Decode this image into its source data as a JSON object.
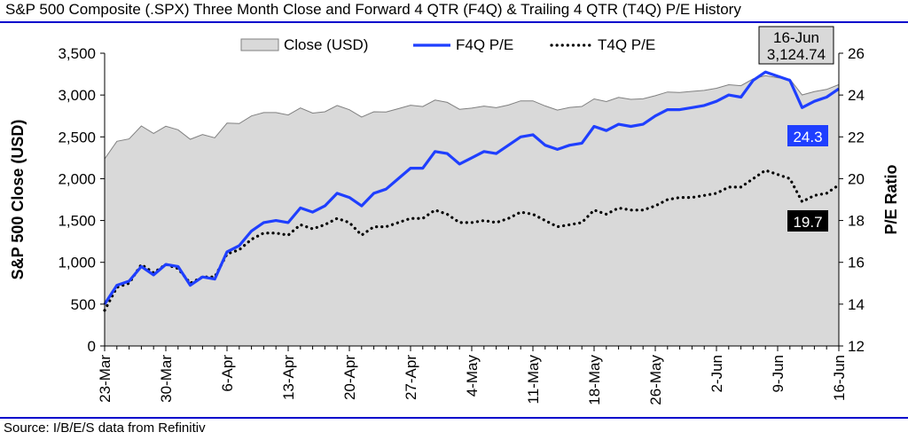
{
  "header": {
    "title": "S&P 500 Composite (.SPX) Three Month Close and Forward 4 QTR (F4Q) & Trailing 4 QTR (T4Q) P/E History"
  },
  "footer": {
    "source": "Source: I/B/E/S data from Refinitiv"
  },
  "colors": {
    "area_fill": "#d9d9d9",
    "area_stroke": "#808080",
    "f4q_line": "#1f3fff",
    "t4q_line": "#000000",
    "rule": "#0000cc",
    "f4q_label_bg": "#1f3fff",
    "t4q_label_bg": "#000000"
  },
  "chart_data": {
    "type": "area+line",
    "title": "S&P 500 Composite (.SPX) Three Month Close and Forward 4 QTR (F4Q) & Trailing 4 QTR (T4Q) P/E History",
    "ylabel": "S&P 500 Close (USD)",
    "y2label": "P/E Ratio",
    "ylim": [
      0,
      3500
    ],
    "y2lim": [
      12,
      26
    ],
    "yticks": [
      "0",
      "500",
      "1,000",
      "1,500",
      "2,000",
      "2,500",
      "3,000",
      "3,500"
    ],
    "y2ticks": [
      "12",
      "14",
      "16",
      "18",
      "20",
      "22",
      "24",
      "26"
    ],
    "xtick_labels": [
      "23-Mar",
      "30-Mar",
      "6-Apr",
      "13-Apr",
      "20-Apr",
      "27-Apr",
      "4-May",
      "11-May",
      "18-May",
      "26-May",
      "2-Jun",
      "9-Jun",
      "16-Jun"
    ],
    "xtick_index": [
      0,
      5,
      10,
      15,
      20,
      25,
      30,
      35,
      40,
      45,
      50,
      55,
      60
    ],
    "grid": false,
    "legend_position": "top",
    "x": [
      "23-Mar",
      "24-Mar",
      "25-Mar",
      "26-Mar",
      "27-Mar",
      "30-Mar",
      "31-Mar",
      "1-Apr",
      "2-Apr",
      "3-Apr",
      "6-Apr",
      "7-Apr",
      "8-Apr",
      "9-Apr",
      "10-Apr",
      "13-Apr",
      "14-Apr",
      "15-Apr",
      "16-Apr",
      "17-Apr",
      "20-Apr",
      "21-Apr",
      "22-Apr",
      "23-Apr",
      "24-Apr",
      "27-Apr",
      "28-Apr",
      "29-Apr",
      "30-Apr",
      "1-May",
      "4-May",
      "5-May",
      "6-May",
      "7-May",
      "8-May",
      "11-May",
      "12-May",
      "13-May",
      "14-May",
      "15-May",
      "18-May",
      "19-May",
      "20-May",
      "21-May",
      "22-May",
      "26-May",
      "27-May",
      "28-May",
      "29-May",
      "1-Jun",
      "2-Jun",
      "3-Jun",
      "4-Jun",
      "5-Jun",
      "8-Jun",
      "9-Jun",
      "10-Jun",
      "11-Jun",
      "12-Jun",
      "15-Jun",
      "16-Jun"
    ],
    "series": [
      {
        "name": "Close (USD)",
        "type": "area",
        "axis": "left",
        "values": [
          2237,
          2447,
          2475,
          2630,
          2541,
          2627,
          2585,
          2471,
          2527,
          2489,
          2664,
          2659,
          2750,
          2790,
          2790,
          2762,
          2846,
          2784,
          2800,
          2875,
          2824,
          2737,
          2800,
          2798,
          2837,
          2878,
          2863,
          2940,
          2912,
          2830,
          2843,
          2868,
          2849,
          2881,
          2930,
          2930,
          2870,
          2820,
          2852,
          2864,
          2954,
          2922,
          2972,
          2949,
          2955,
          2992,
          3036,
          3030,
          3044,
          3056,
          3081,
          3123,
          3112,
          3194,
          3232,
          3207,
          3190,
          3002,
          3041,
          3067,
          3125
        ]
      },
      {
        "name": "F4Q P/E",
        "type": "line",
        "axis": "right",
        "values": [
          14.0,
          14.9,
          15.1,
          15.8,
          15.4,
          15.9,
          15.8,
          14.9,
          15.3,
          15.2,
          16.5,
          16.8,
          17.5,
          17.9,
          18.0,
          17.9,
          18.6,
          18.4,
          18.7,
          19.3,
          19.1,
          18.7,
          19.3,
          19.5,
          20.0,
          20.5,
          20.5,
          21.3,
          21.2,
          20.7,
          21.0,
          21.3,
          21.2,
          21.6,
          22.0,
          22.1,
          21.6,
          21.4,
          21.6,
          21.7,
          22.5,
          22.3,
          22.6,
          22.5,
          22.6,
          23.0,
          23.3,
          23.3,
          23.4,
          23.5,
          23.7,
          24.0,
          23.9,
          24.7,
          25.1,
          24.9,
          24.7,
          23.4,
          23.7,
          23.9,
          24.3
        ]
      },
      {
        "name": "T4Q P/E",
        "type": "line",
        "axis": "right",
        "values": [
          13.7,
          14.8,
          15.0,
          15.9,
          15.5,
          15.9,
          15.7,
          15.0,
          15.3,
          15.3,
          16.4,
          16.6,
          17.1,
          17.4,
          17.4,
          17.3,
          17.8,
          17.6,
          17.8,
          18.1,
          17.9,
          17.3,
          17.7,
          17.7,
          17.9,
          18.1,
          18.1,
          18.5,
          18.3,
          17.9,
          17.9,
          18.0,
          17.9,
          18.1,
          18.4,
          18.3,
          18.0,
          17.7,
          17.8,
          17.9,
          18.5,
          18.3,
          18.6,
          18.5,
          18.5,
          18.7,
          19.0,
          19.1,
          19.1,
          19.2,
          19.3,
          19.6,
          19.6,
          20.0,
          20.4,
          20.2,
          20.0,
          18.9,
          19.2,
          19.3,
          19.7
        ]
      }
    ],
    "annotations": {
      "close_callout": {
        "date": "16-Jun",
        "value": "3,124.74"
      },
      "f4q_label": "24.3",
      "t4q_label": "19.7"
    }
  }
}
